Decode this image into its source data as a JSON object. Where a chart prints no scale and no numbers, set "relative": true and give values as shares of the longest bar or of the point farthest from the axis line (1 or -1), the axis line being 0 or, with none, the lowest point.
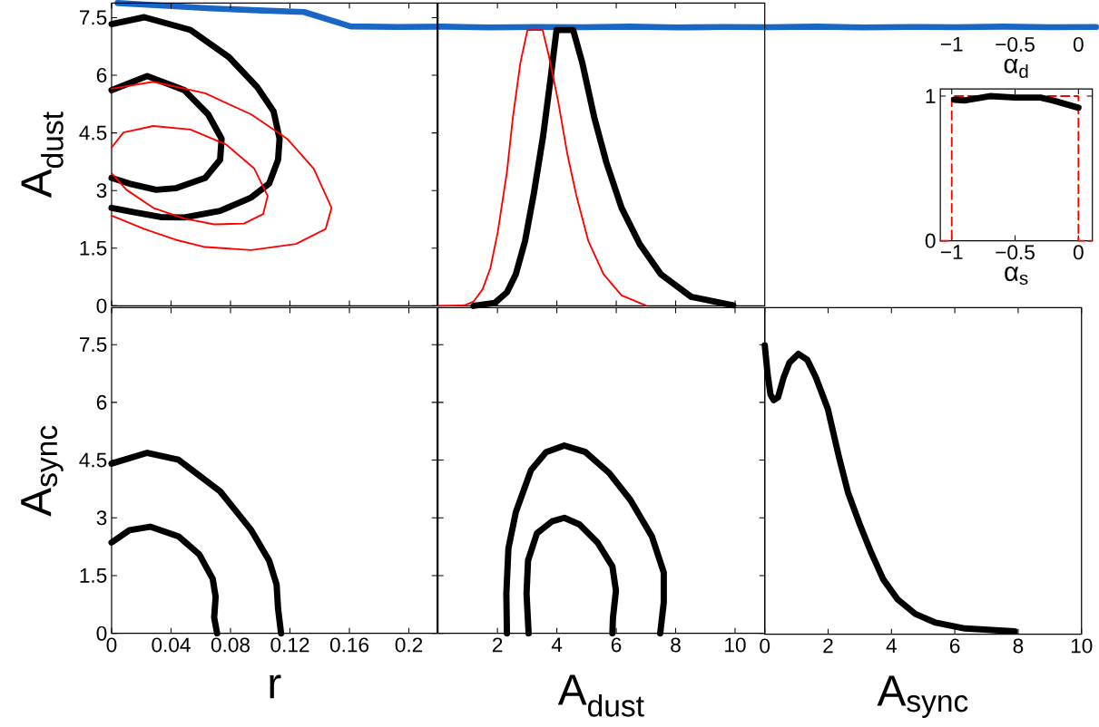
{
  "chart_data": [
    {
      "type": "line",
      "relative": true,
      "categories": [
        null,
        null,
        null,
        null,
        null,
        null,
        null,
        null,
        null,
        null,
        null,
        null,
        null,
        null,
        null,
        null,
        null,
        null,
        null,
        null,
        null,
        null
      ],
      "series": [
        {
          "color": "#1a66c4",
          "values": [
            1,
            0.89,
            0.78,
            0.7,
            0.63,
            0.04,
            0.02,
            0.03,
            0,
            0.02,
            0.01,
            0.03,
            0,
            0.02,
            0.01,
            0.03,
            0,
            0.02,
            0.01,
            0.03,
            0.01,
            0.02
          ]
        }
      ]
    },
    {
      "type": "line",
      "xlim": [
        0,
        0.219
      ],
      "ylim": [
        0,
        7.88
      ],
      "xticks": [
        0,
        0.04,
        0.08,
        0.12,
        0.16,
        0.2
      ],
      "yticks": [
        0,
        1.5,
        3,
        4.5,
        6,
        7.5
      ],
      "ylabel": "A$_{dust}$",
      "tick_labels": "y",
      "series": [
        {
          "color": "#000000",
          "x": [
            0,
            0.022,
            0.053,
            0.079,
            0.098,
            0.109,
            0.113,
            0.112,
            0.106,
            0.094,
            0.073,
            0.049,
            0.033,
            0.016,
            0
          ],
          "values": [
            7.33,
            7.51,
            7.18,
            6.47,
            5.69,
            5.06,
            4.35,
            3.8,
            3.18,
            2.82,
            2.47,
            2.3,
            2.31,
            2.43,
            2.55
          ]
        },
        {
          "color": "#000000",
          "x": [
            0,
            0.024,
            0.049,
            0.065,
            0.074,
            0.073,
            0.063,
            0.043,
            0.03,
            0.012,
            0
          ],
          "values": [
            5.61,
            5.98,
            5.61,
            4.98,
            4.35,
            3.8,
            3.33,
            3.06,
            3.02,
            3.18,
            3.33
          ]
        },
        {
          "color": "#ff0000",
          "x": [
            0,
            0.028,
            0.063,
            0.094,
            0.118,
            0.136,
            0.148,
            0.144,
            0.124,
            0.094,
            0.063,
            0.043,
            0.022,
            0
          ],
          "values": [
            5.65,
            5.83,
            5.53,
            4.98,
            4.35,
            3.57,
            2.55,
            2.0,
            1.61,
            1.45,
            1.53,
            1.72,
            2.0,
            2.35
          ]
        },
        {
          "color": "#ff0000",
          "x": [
            0,
            0.008,
            0.028,
            0.053,
            0.077,
            0.096,
            0.105,
            0.102,
            0.089,
            0.069,
            0.049,
            0.028,
            0.01,
            0
          ],
          "values": [
            4.12,
            4.51,
            4.68,
            4.59,
            4.2,
            3.57,
            2.86,
            2.39,
            2.14,
            2.12,
            2.27,
            2.55,
            3.02,
            3.45
          ]
        }
      ]
    },
    {
      "type": "line",
      "relative": true,
      "xlim": [
        0,
        11
      ],
      "xticks": [
        2,
        4,
        6,
        8,
        10
      ],
      "tick_labels": false,
      "series": [
        {
          "color": "#000000",
          "x": [
            1.2,
            1.91,
            2.32,
            2.62,
            2.93,
            3.23,
            3.54,
            3.79,
            3.99,
            4.55,
            4.86,
            5.26,
            5.67,
            6.18,
            6.79,
            7.5,
            8.52,
            9.94
          ],
          "values": [
            0,
            0.011,
            0.049,
            0.115,
            0.235,
            0.41,
            0.617,
            0.825,
            1,
            1,
            0.88,
            0.683,
            0.519,
            0.355,
            0.224,
            0.115,
            0.033,
            0.002
          ]
        },
        {
          "color": "#ff0000",
          "x": [
            0,
            0.89,
            1.2,
            1.5,
            1.76,
            2.01,
            2.32,
            2.52,
            2.77,
            3.01,
            3.52,
            3.74,
            4.05,
            4.35,
            4.66,
            5.06,
            5.57,
            6.18,
            6.99
          ],
          "values": [
            0,
            0.002,
            0.016,
            0.06,
            0.136,
            0.267,
            0.486,
            0.683,
            0.88,
            1,
            1,
            0.902,
            0.738,
            0.552,
            0.399,
            0.235,
            0.115,
            0.038,
            0.002
          ]
        }
      ]
    },
    {
      "type": "line",
      "xlim": [
        -1.09,
        0.11
      ],
      "ylim": [
        0,
        1.05
      ],
      "x2lim": [
        -1.09,
        0.11
      ],
      "x2ticks": [
        {
          "value": -1,
          "label": "−1"
        },
        {
          "value": -0.5,
          "label": "−0.5"
        },
        0
      ],
      "x2label": "α$_{d}$",
      "xticks": [
        {
          "value": -1,
          "label": "−1"
        },
        {
          "value": -0.5,
          "label": "−0.5"
        },
        0
      ],
      "yticks": [
        0,
        1
      ],
      "xlabel": "α$_{s}$",
      "series": [
        {
          "color": "#ff0000",
          "line_style": "dashed",
          "x": [
            -1.09,
            -1,
            -1,
            0,
            0,
            0.11
          ],
          "values": [
            0,
            0,
            1,
            1,
            0,
            0
          ]
        },
        {
          "color": "#000000",
          "x": [
            -0.98,
            -0.9,
            -0.7,
            -0.5,
            -0.3,
            -0.2,
            0
          ],
          "values": [
            0.975,
            0.97,
            1.0,
            0.99,
            0.99,
            0.97,
            0.92
          ]
        }
      ]
    },
    {
      "type": "line",
      "xlim": [
        0,
        0.219
      ],
      "ylim": [
        0,
        8.46
      ],
      "xticks": [
        0,
        0.04,
        0.08,
        0.12,
        0.16,
        0.2
      ],
      "yticks": [
        0,
        1.5,
        3,
        4.5,
        6,
        7.5
      ],
      "xlabel": "r",
      "ylabel": "A$_{sync}$",
      "series": [
        {
          "color": "#000000",
          "x": [
            0,
            0.024,
            0.045,
            0.073,
            0.094,
            0.106,
            0.111,
            0.112,
            0.114
          ],
          "values": [
            4.41,
            4.69,
            4.51,
            3.69,
            2.68,
            1.89,
            1.27,
            0.64,
            0
          ]
        },
        {
          "color": "#000000",
          "x": [
            0,
            0.012,
            0.026,
            0.045,
            0.059,
            0.068,
            0.07,
            0.069,
            0.071
          ],
          "values": [
            2.36,
            2.68,
            2.77,
            2.52,
            2.05,
            1.42,
            0.95,
            0.41,
            0
          ]
        }
      ]
    },
    {
      "type": "line",
      "xlim": [
        0,
        11
      ],
      "ylim": [
        0,
        8.46
      ],
      "xticks": [
        2,
        4,
        6,
        8,
        10
      ],
      "yticks": [
        0,
        1.5,
        3,
        4.5,
        6,
        7.5
      ],
      "xlabel": "A$_{dust}$",
      "tick_labels": "x",
      "series": [
        {
          "color": "#000000",
          "x": [
            2.32,
            2.3,
            2.37,
            2.62,
            3.13,
            3.64,
            4.25,
            4.96,
            5.77,
            6.48,
            7.2,
            7.6,
            7.6,
            7.48
          ],
          "values": [
            0,
            1.03,
            2.21,
            3.15,
            4.24,
            4.71,
            4.88,
            4.71,
            4.16,
            3.46,
            2.52,
            1.58,
            0.8,
            0
          ]
        },
        {
          "color": "#000000",
          "x": [
            3.05,
            2.98,
            3.03,
            3.33,
            3.84,
            4.25,
            4.76,
            5.37,
            5.87,
            5.99,
            5.89,
            5.87
          ],
          "values": [
            0,
            1.03,
            1.89,
            2.6,
            2.91,
            3.0,
            2.83,
            2.36,
            1.74,
            1.11,
            0.41,
            0
          ]
        }
      ]
    },
    {
      "type": "line",
      "relative": true,
      "xlim": [
        0,
        10
      ],
      "xticks": [
        0,
        2,
        4,
        6,
        8,
        10
      ],
      "xlabel": "A$_{sync}$",
      "tick_labels": "x",
      "series": [
        {
          "color": "#000000",
          "x": [
            0,
            0.09,
            0.18,
            0.28,
            0.42,
            0.6,
            0.78,
            1.06,
            1.34,
            1.61,
            1.99,
            2.35,
            2.63,
            3.0,
            3.37,
            3.74,
            4.2,
            4.76,
            5.4,
            6.32,
            7.89
          ],
          "values": [
            1.0,
            0.9,
            0.83,
            0.81,
            0.82,
            0.89,
            0.94,
            0.97,
            0.95,
            0.89,
            0.78,
            0.61,
            0.49,
            0.38,
            0.28,
            0.19,
            0.12,
            0.07,
            0.04,
            0.02,
            0.01
          ]
        }
      ]
    }
  ]
}
